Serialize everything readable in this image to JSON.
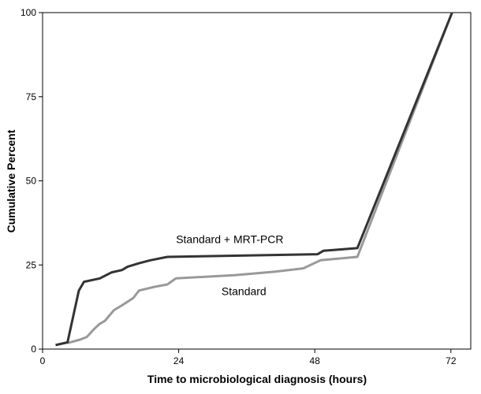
{
  "chart_data": {
    "type": "line",
    "xlabel": "Time to microbiological diagnosis (hours)",
    "ylabel": "Cumulative Percent",
    "xlim": [
      0,
      75.5
    ],
    "ylim": [
      0,
      100
    ],
    "x_ticks": [
      0,
      24,
      48,
      72
    ],
    "y_ticks": [
      0,
      25,
      50,
      75,
      100
    ],
    "x_tick_labels": [
      "0",
      "24",
      "48",
      "72"
    ],
    "y_tick_labels": [
      "0",
      "25",
      "50",
      "75",
      "100"
    ],
    "grid": false,
    "legend": "none",
    "series": [
      {
        "name": "Standard + MRT-PCR",
        "color": "#333333",
        "x": [
          2.3,
          4.4,
          6.4,
          7.3,
          10.1,
          12.2,
          14.0,
          15.0,
          17.0,
          19.0,
          22.0,
          48.5,
          49.5,
          55.5,
          72.2
        ],
        "y": [
          1.2,
          2.0,
          17.4,
          20.0,
          21.0,
          22.8,
          23.5,
          24.5,
          25.5,
          26.4,
          27.4,
          28.2,
          29.2,
          30.0,
          100
        ]
      },
      {
        "name": "Standard",
        "color": "#999999",
        "x": [
          4.4,
          6.6,
          7.8,
          9.0,
          10.0,
          11.0,
          12.6,
          14.0,
          16.0,
          17.0,
          18.0,
          20.0,
          22.0,
          23.5,
          34.0,
          41.0,
          46.0,
          49.0,
          55.5,
          72.2
        ],
        "y": [
          1.8,
          2.8,
          3.6,
          5.8,
          7.4,
          8.4,
          11.6,
          13.0,
          15.2,
          17.4,
          17.8,
          18.6,
          19.2,
          21.0,
          22.0,
          23.0,
          24.0,
          26.4,
          27.4,
          100
        ]
      }
    ],
    "annotations": [
      {
        "text": "Standard + MRT-PCR",
        "x": 33.0,
        "y": 31.5,
        "series": "Standard + MRT-PCR"
      },
      {
        "text": "Standard",
        "x": 35.5,
        "y": 16.0,
        "series": "Standard"
      }
    ]
  }
}
